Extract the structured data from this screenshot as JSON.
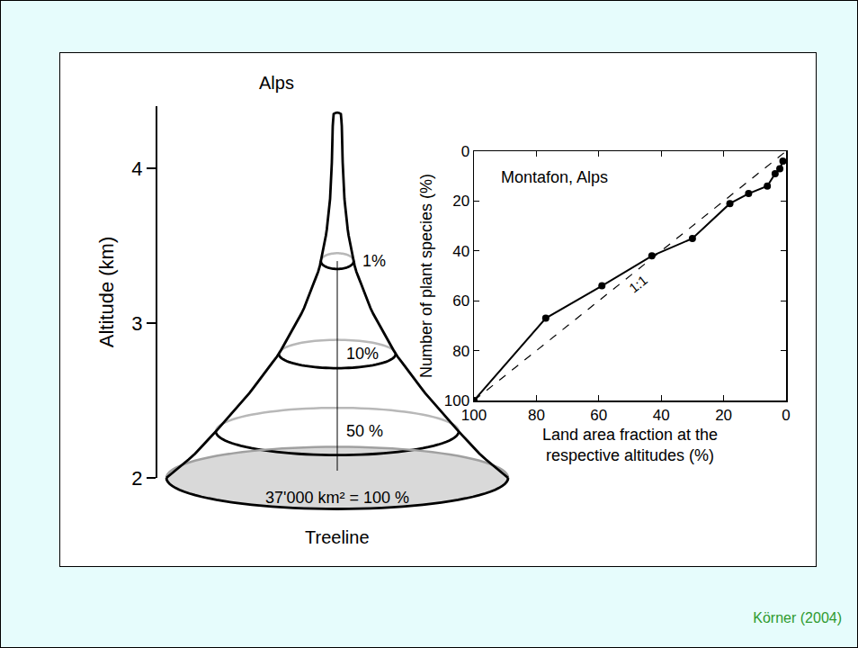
{
  "chart_data": [
    {
      "type": "cone",
      "title": "Alps",
      "y_label": "Altitude (km)",
      "ylim": [
        2,
        4.4
      ],
      "yticks": [
        2,
        3,
        4
      ],
      "grid": false,
      "levels": [
        {
          "label": "1%",
          "altitude": 3.4
        },
        {
          "label": "10%",
          "altitude": 2.8
        },
        {
          "label": "50 %",
          "altitude": 2.3
        },
        {
          "label": "37'000 km² = 100 %",
          "altitude": 2
        }
      ],
      "base_label": "Treeline"
    },
    {
      "type": "line",
      "title": "Montafon, Alps",
      "x_label": "Land area fraction at the respective altitudes (%)",
      "y_label": "Number of plant species (%)",
      "xlim": [
        100,
        0
      ],
      "xticks": [
        100,
        80,
        60,
        40,
        20,
        0
      ],
      "ylim": [
        100,
        0
      ],
      "yticks": [
        0,
        20,
        40,
        60,
        80,
        100
      ],
      "grid": false,
      "series": [
        {
          "x": [
            100,
            77,
            59,
            43,
            30,
            18,
            12,
            6,
            3.5,
            2,
            1
          ],
          "values": [
            100,
            67,
            54,
            42,
            35,
            21,
            17,
            14,
            9,
            7,
            4
          ],
          "color": "#000000",
          "marker": "circle",
          "line_style": "solid"
        },
        {
          "name": "1:1",
          "x": [
            100,
            0
          ],
          "values": [
            100,
            0
          ],
          "color": "#000000",
          "line_style": "dashed"
        }
      ]
    }
  ],
  "source": "Körner (2004)"
}
